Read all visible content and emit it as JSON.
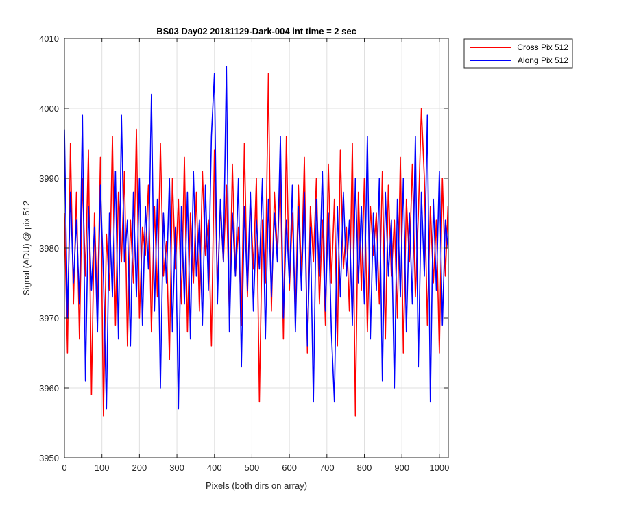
{
  "chart_data": {
    "type": "line",
    "title": "BS03 Day02 20181129-Dark-004 int time = 2 sec",
    "xlabel": "Pixels (both dirs on array)",
    "ylabel": "Signal (ADU) @ pix 512",
    "xlim": [
      0,
      1024
    ],
    "ylim": [
      3950,
      4010
    ],
    "xticks": [
      0,
      100,
      200,
      300,
      400,
      500,
      600,
      700,
      800,
      900,
      1000
    ],
    "yticks": [
      3950,
      3960,
      3970,
      3980,
      3990,
      4000,
      4010
    ],
    "grid": true,
    "legend_position": "outside-top-right",
    "series": [
      {
        "name": "Cross Pix 512",
        "color": "#ff0000",
        "x": [
          0,
          8,
          16,
          24,
          32,
          40,
          48,
          56,
          64,
          72,
          80,
          88,
          96,
          104,
          112,
          120,
          128,
          136,
          144,
          152,
          160,
          168,
          176,
          184,
          192,
          200,
          208,
          216,
          224,
          232,
          240,
          248,
          256,
          264,
          272,
          280,
          288,
          296,
          304,
          312,
          320,
          328,
          336,
          344,
          352,
          360,
          368,
          376,
          384,
          392,
          400,
          408,
          416,
          424,
          432,
          440,
          448,
          456,
          464,
          472,
          480,
          488,
          496,
          504,
          512,
          520,
          528,
          536,
          544,
          552,
          560,
          568,
          576,
          584,
          592,
          600,
          608,
          616,
          624,
          632,
          640,
          648,
          656,
          664,
          672,
          680,
          688,
          696,
          704,
          712,
          720,
          728,
          736,
          744,
          752,
          760,
          768,
          776,
          784,
          792,
          800,
          808,
          816,
          824,
          832,
          840,
          848,
          856,
          864,
          872,
          880,
          888,
          896,
          904,
          912,
          920,
          928,
          936,
          944,
          952,
          960,
          968,
          976,
          984,
          992,
          1000,
          1008,
          1016,
          1023
        ],
        "y": [
          3985,
          3965,
          3995,
          3972,
          3988,
          3967,
          3990,
          3976,
          3994,
          3959,
          3985,
          3971,
          3993,
          3956,
          3982,
          3974,
          3996,
          3969,
          3988,
          3978,
          3991,
          3966,
          3984,
          3975,
          3997,
          3970,
          3983,
          3979,
          3989,
          3968,
          3986,
          3973,
          3995,
          3976,
          3981,
          3964,
          3990,
          3977,
          3987,
          3972,
          3993,
          3968,
          3985,
          3975,
          3988,
          3971,
          3991,
          3979,
          3984,
          3966,
          3994,
          3974,
          3986,
          3978,
          3989,
          3970,
          3992,
          3976,
          3983,
          3969,
          3995,
          3973,
          3987,
          3977,
          3990,
          3958,
          3984,
          3975,
          4005,
          3971,
          3988,
          3979,
          3991,
          3967,
          3996,
          3974,
          3985,
          3970,
          3989,
          3976,
          3993,
          3965,
          3986,
          3978,
          3990,
          3972,
          3984,
          3969,
          3992,
          3975,
          3987,
          3966,
          3994,
          3977,
          3983,
          3971,
          3995,
          3956,
          3988,
          3974,
          3990,
          3968,
          3986,
          3979,
          3985,
          3972,
          3991,
          3967,
          3989,
          3976,
          3984,
          3970,
          3993,
          3965,
          3987,
          3978,
          3992,
          3973,
          3985,
          4000,
          3990,
          3969,
          3986,
          3975,
          3984,
          3965,
          3990,
          3976,
          3986
        ]
      },
      {
        "name": "Along Pix 512",
        "color": "#0000ff",
        "x": [
          0,
          8,
          16,
          24,
          32,
          40,
          48,
          56,
          64,
          72,
          80,
          88,
          96,
          104,
          112,
          120,
          128,
          136,
          144,
          152,
          160,
          168,
          176,
          184,
          192,
          200,
          208,
          216,
          224,
          232,
          240,
          248,
          256,
          264,
          272,
          280,
          288,
          296,
          304,
          312,
          320,
          328,
          336,
          344,
          352,
          360,
          368,
          376,
          384,
          392,
          400,
          408,
          416,
          424,
          432,
          440,
          448,
          456,
          464,
          472,
          480,
          488,
          496,
          504,
          512,
          520,
          528,
          536,
          544,
          552,
          560,
          568,
          576,
          584,
          592,
          600,
          608,
          616,
          624,
          632,
          640,
          648,
          656,
          664,
          672,
          680,
          688,
          696,
          704,
          712,
          720,
          728,
          736,
          744,
          752,
          760,
          768,
          776,
          784,
          792,
          800,
          808,
          816,
          824,
          832,
          840,
          848,
          856,
          864,
          872,
          880,
          888,
          896,
          904,
          912,
          920,
          928,
          936,
          944,
          952,
          960,
          968,
          976,
          984,
          992,
          1000,
          1008,
          1016,
          1023
        ],
        "y": [
          3997,
          3970,
          3988,
          3975,
          3984,
          3972,
          3999,
          3961,
          3986,
          3974,
          3983,
          3968,
          3989,
          3976,
          3957,
          3985,
          3973,
          3991,
          3967,
          3999,
          3978,
          3984,
          3966,
          3988,
          3973,
          3990,
          3969,
          3986,
          3977,
          4002,
          3971,
          3987,
          3960,
          3985,
          3975,
          3990,
          3968,
          3983,
          3957,
          3986,
          3972,
          3988,
          3967,
          3991,
          3976,
          3984,
          3969,
          3989,
          3974,
          3996,
          4005,
          3972,
          3987,
          3978,
          4006,
          3968,
          3985,
          3976,
          3990,
          3963,
          3986,
          3974,
          3988,
          3971,
          3984,
          3977,
          3990,
          3967,
          3987,
          3973,
          3985,
          3978,
          3996,
          3970,
          3984,
          3975,
          3989,
          3968,
          3986,
          3974,
          3988,
          3966,
          3983,
          3958,
          3987,
          3976,
          3991,
          3971,
          3985,
          3968,
          3958,
          3986,
          3973,
          3988,
          3976,
          3984,
          3969,
          3990,
          3975,
          3986,
          3972,
          3996,
          3967,
          3985,
          3974,
          3990,
          3961,
          3988,
          3976,
          3984,
          3960,
          3987,
          3973,
          3990,
          3968,
          3985,
          3972,
          3996,
          3963,
          3988,
          3976,
          3999,
          3958,
          3987,
          3974,
          3991,
          3969,
          3984,
          3980
        ]
      }
    ]
  }
}
